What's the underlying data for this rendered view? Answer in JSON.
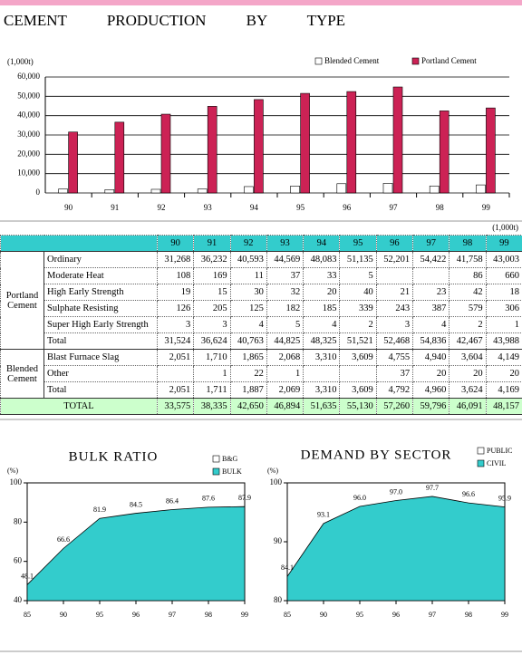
{
  "chart_data": [
    {
      "type": "bar",
      "title": "CEMENT PRODUCTION BY TYPE",
      "y_label": "(1,000t)",
      "categories": [
        "90",
        "91",
        "92",
        "93",
        "94",
        "95",
        "96",
        "97",
        "98",
        "99"
      ],
      "series": [
        {
          "name": "Blended Cement",
          "color": "#ffffff",
          "values": [
            2051,
            1711,
            1887,
            2069,
            3310,
            3609,
            4792,
            4960,
            3624,
            4169
          ]
        },
        {
          "name": "Portland Cement",
          "color": "#cc2255",
          "values": [
            31524,
            36624,
            40763,
            44825,
            48325,
            51521,
            52468,
            54836,
            42467,
            43988
          ]
        }
      ],
      "ylim": [
        0,
        60000
      ],
      "yticks": [
        0,
        {
          "value": 10000,
          "label": "10,000"
        },
        {
          "value": 20000,
          "label": "20,000"
        },
        {
          "value": 30000,
          "label": "30,000"
        },
        {
          "value": 40000,
          "label": "40,000"
        },
        {
          "value": 50000,
          "label": "50,000"
        },
        {
          "value": 60000,
          "label": "60,000"
        }
      ],
      "grid": true
    },
    {
      "type": "area",
      "title": "BULK RATIO",
      "y_label": "(%)",
      "categories": [
        "85",
        "90",
        "95",
        "96",
        "97",
        "98",
        "99"
      ],
      "series": [
        {
          "name": "B&G",
          "color": "#ffffff"
        },
        {
          "name": "BULK",
          "color": "#33cccc",
          "values": [
            48.1,
            66.6,
            81.9,
            84.5,
            86.4,
            87.6,
            87.9
          ]
        }
      ],
      "ylim": [
        40,
        100
      ],
      "yticks": [
        40,
        60,
        80,
        100
      ]
    },
    {
      "type": "area",
      "title": "DEMAND BY SECTOR",
      "y_label": "(%)",
      "categories": [
        "85",
        "90",
        "95",
        "96",
        "97",
        "98",
        "99"
      ],
      "series": [
        {
          "name": "PUBLIC",
          "color": "#ffffff"
        },
        {
          "name": "CIVIL",
          "color": "#33cccc",
          "values": [
            84.1,
            93.1,
            96.0,
            97.0,
            97.7,
            96.6,
            95.9
          ],
          "value_labels": [
            "84.1",
            "93.1",
            "96.0",
            "97.0",
            "97.7",
            "96.6",
            "95.9"
          ]
        }
      ],
      "ylim": [
        80,
        100
      ],
      "yticks": [
        80,
        90,
        100
      ]
    }
  ],
  "table": {
    "unit": "(1,000t)",
    "columns": [
      "90",
      "91",
      "92",
      "93",
      "94",
      "95",
      "96",
      "97",
      "98",
      "99"
    ],
    "groups": [
      {
        "label": "Portland Cement",
        "rows": [
          {
            "label": "Ordinary",
            "values": [
              "31,268",
              "36,232",
              "40,593",
              "44,569",
              "48,083",
              "51,135",
              "52,201",
              "54,422",
              "41,758",
              "43,003"
            ]
          },
          {
            "label": "Moderate Heat",
            "values": [
              "108",
              "169",
              "11",
              "37",
              "33",
              "5",
              null,
              null,
              "86",
              "660"
            ]
          },
          {
            "label": "High Early Strength",
            "values": [
              "19",
              "15",
              "30",
              "32",
              "20",
              "40",
              "21",
              "23",
              "42",
              "18"
            ]
          },
          {
            "label": "Sulphate Resisting",
            "values": [
              "126",
              "205",
              "125",
              "182",
              "185",
              "339",
              "243",
              "387",
              "579",
              "306"
            ]
          },
          {
            "label": "Super High Early Strength",
            "values": [
              "3",
              "3",
              "4",
              "5",
              "4",
              "2",
              "3",
              "4",
              "2",
              "1"
            ]
          },
          {
            "label": "Total",
            "values": [
              "31,524",
              "36,624",
              "40,763",
              "44,825",
              "48,325",
              "51,521",
              "52,468",
              "54,836",
              "42,467",
              "43,988"
            ]
          }
        ]
      },
      {
        "label": "Blended Cement",
        "rows": [
          {
            "label": "Blast Furnace Slag",
            "values": [
              "2,051",
              "1,710",
              "1,865",
              "2,068",
              "3,310",
              "3,609",
              "4,755",
              "4,940",
              "3,604",
              "4,149"
            ]
          },
          {
            "label": "Other",
            "values": [
              null,
              "1",
              "22",
              "1",
              null,
              null,
              "37",
              "20",
              "20",
              "20"
            ]
          },
          {
            "label": "Total",
            "values": [
              "2,051",
              "1,711",
              "1,887",
              "2,069",
              "3,310",
              "3,609",
              "4,792",
              "4,960",
              "3,624",
              "4,169"
            ]
          }
        ]
      }
    ],
    "total": {
      "label": "TOTAL",
      "values": [
        "33,575",
        "38,335",
        "42,650",
        "46,894",
        "51,635",
        "55,130",
        "57,260",
        "59,796",
        "46,091",
        "48,157"
      ]
    }
  }
}
